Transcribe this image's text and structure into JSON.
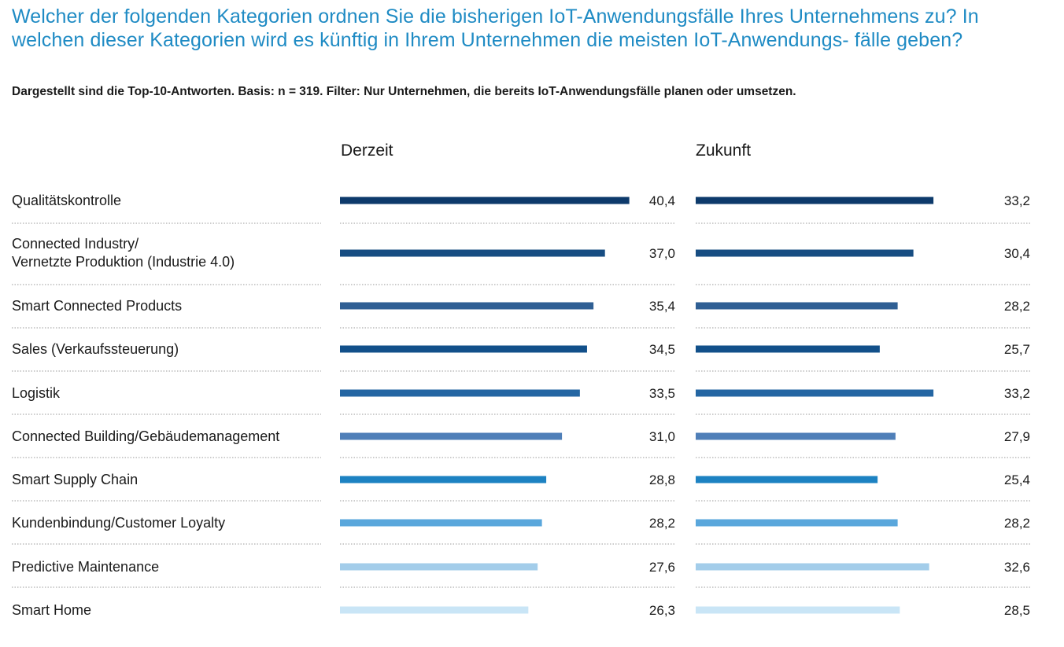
{
  "title": "Welcher der folgenden Kategorien ordnen Sie die bisherigen IoT-Anwendungsfälle Ihres Unternehmens zu? In welchen dieser Kategorien wird es künftig in Ihrem Unternehmen die meisten IoT-Anwendungs- fälle geben?",
  "subtitle": "Dargestellt sind die Top-10-Antworten. Basis: n = 319. Filter: Nur Unternehmen, die bereits IoT-Anwendungsfälle planen oder umsetzen.",
  "chart_data": {
    "type": "bar",
    "orientation": "horizontal",
    "grid": false,
    "categories": [
      [
        "Qualitätskontrolle"
      ],
      [
        "Connected Industry/",
        "Vernetzte Produktion (Industrie 4.0)"
      ],
      [
        "Smart Connected Products"
      ],
      [
        "Sales (Verkaufssteuerung)"
      ],
      [
        "Logistik"
      ],
      [
        "Connected Building/Gebäudemanagement"
      ],
      [
        "Smart Supply Chain"
      ],
      [
        "Kundenbindung/Customer Loyalty"
      ],
      [
        "Predictive Maintenance"
      ],
      [
        "Smart Home"
      ]
    ],
    "series": [
      {
        "name": "Derzeit",
        "values": [
          40.4,
          37.0,
          35.4,
          34.5,
          33.5,
          31.0,
          28.8,
          28.2,
          27.6,
          26.3
        ],
        "labels": [
          "40,4",
          "37,0",
          "35,4",
          "34,5",
          "33,5",
          "31,0",
          "28,8",
          "28,2",
          "27,6",
          "26,3"
        ]
      },
      {
        "name": "Zukunft",
        "values": [
          33.2,
          30.4,
          28.2,
          25.7,
          33.2,
          27.9,
          25.4,
          28.2,
          32.6,
          28.5
        ],
        "labels": [
          "33,2",
          "30,4",
          "28,2",
          "25,7",
          "33,2",
          "27,9",
          "25,4",
          "28,2",
          "32,6",
          "28,5"
        ]
      }
    ],
    "row_colors": [
      "#0d3a6b",
      "#174d82",
      "#2f5f94",
      "#12508a",
      "#2466a3",
      "#4f7fb8",
      "#1d82c2",
      "#5aa7dc",
      "#a3cdea",
      "#c9e5f6"
    ],
    "separator_color": "#9a9a9a"
  }
}
